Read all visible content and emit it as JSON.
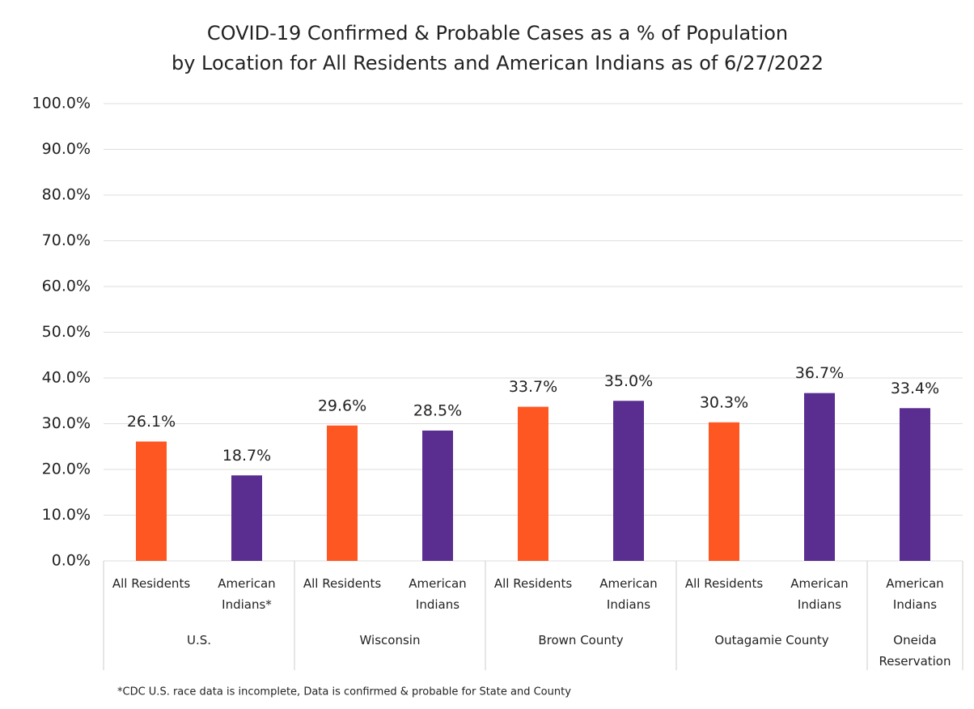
{
  "chart_data": {
    "type": "bar",
    "title": [
      "COVID-19 Confirmed & Probable Cases as a % of Population",
      "by Location for All Residents and American Indians as of 6/27/2022"
    ],
    "groups": [
      {
        "name": "U.S.",
        "categories": [
          "All Residents",
          "American Indians*"
        ],
        "values": [
          26.1,
          18.7
        ],
        "value_labels": [
          "26.1%",
          "18.7%"
        ],
        "colors": [
          "#ff5722",
          "#5a2d91"
        ]
      },
      {
        "name": "Wisconsin",
        "categories": [
          "All Residents",
          "American Indians"
        ],
        "values": [
          29.6,
          28.5
        ],
        "value_labels": [
          "29.6%",
          "28.5%"
        ],
        "colors": [
          "#ff5722",
          "#5a2d91"
        ]
      },
      {
        "name": "Brown County",
        "categories": [
          "All Residents",
          "American Indians"
        ],
        "values": [
          33.7,
          35.0
        ],
        "value_labels": [
          "33.7%",
          "35.0%"
        ],
        "colors": [
          "#ff5722",
          "#5a2d91"
        ]
      },
      {
        "name": "Outagamie County",
        "categories": [
          "All Residents",
          "American Indians"
        ],
        "values": [
          30.3,
          36.7
        ],
        "value_labels": [
          "30.3%",
          "36.7%"
        ],
        "colors": [
          "#ff5722",
          "#5a2d91"
        ]
      },
      {
        "name": "Oneida Reservation",
        "categories": [
          "American Indians"
        ],
        "values": [
          33.4
        ],
        "value_labels": [
          "33.4%"
        ],
        "colors": [
          "#5a2d91"
        ]
      }
    ],
    "ylim": [
      0,
      100
    ],
    "yticks": [
      {
        "value": 0,
        "label": "0.0%"
      },
      {
        "value": 10,
        "label": "10.0%"
      },
      {
        "value": 20,
        "label": "20.0%"
      },
      {
        "value": 30,
        "label": "30.0%"
      },
      {
        "value": 40,
        "label": "40.0%"
      },
      {
        "value": 50,
        "label": "50.0%"
      },
      {
        "value": 60,
        "label": "60.0%"
      },
      {
        "value": 70,
        "label": "70.0%"
      },
      {
        "value": 80,
        "label": "80.0%"
      },
      {
        "value": 90,
        "label": "90.0%"
      },
      {
        "value": 100,
        "label": "100.0%"
      }
    ],
    "grid": true,
    "footnote": "*CDC U.S. race data is incomplete, Data is confirmed & probable for State and County"
  }
}
